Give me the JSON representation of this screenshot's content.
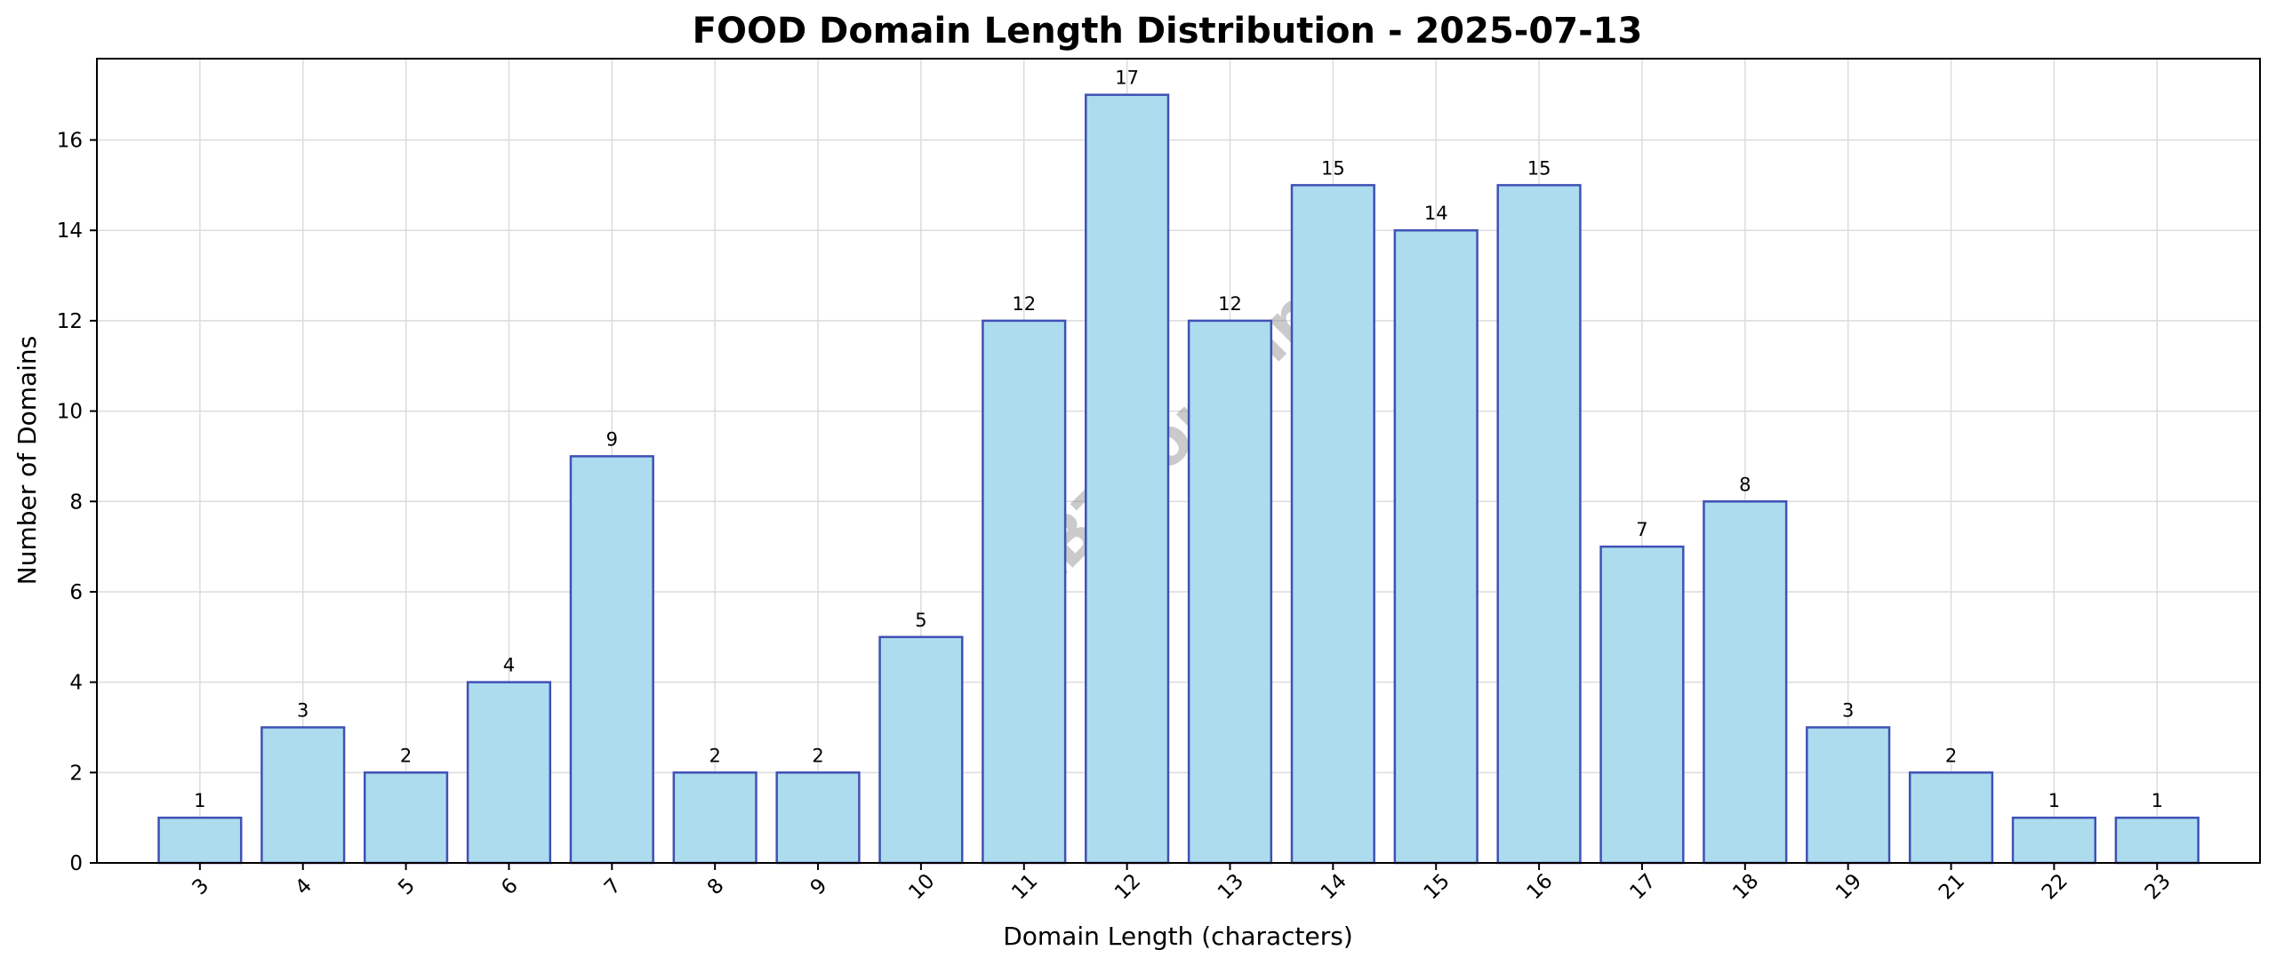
{
  "chart_data": {
    "type": "bar",
    "title": "FOOD Domain Length Distribution - 2025-07-13",
    "xlabel": "Domain Length (characters)",
    "ylabel": "Number of Domains",
    "categories": [
      "3",
      "4",
      "5",
      "6",
      "7",
      "8",
      "9",
      "10",
      "11",
      "12",
      "13",
      "14",
      "15",
      "16",
      "17",
      "18",
      "19",
      "21",
      "22",
      "23"
    ],
    "values": [
      1,
      3,
      2,
      4,
      9,
      2,
      2,
      5,
      12,
      17,
      12,
      15,
      14,
      15,
      7,
      8,
      3,
      2,
      1,
      1
    ],
    "ylim": [
      0,
      17.8
    ],
    "yticks": [
      0,
      2,
      4,
      6,
      8,
      10,
      12,
      14,
      16
    ],
    "grid": true,
    "bar_color": "#ADDCEF",
    "bar_edge_color": "#3F51B5",
    "watermark": "ABTdomain"
  }
}
